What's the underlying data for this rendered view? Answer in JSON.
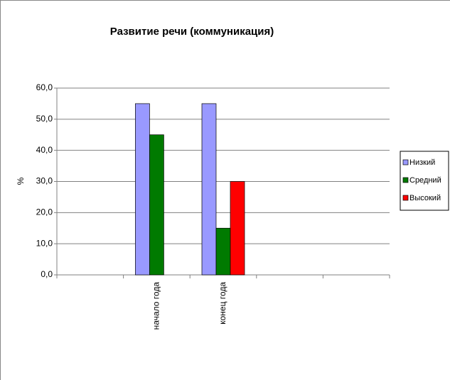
{
  "chart_data": {
    "type": "bar",
    "title": "Развитие речи (коммуникация)",
    "y_label": "%",
    "categories": [
      null,
      "начало года",
      "конец года",
      null,
      null
    ],
    "series": [
      {
        "name": "Низкий",
        "color": "#9999ff",
        "values": [
          null,
          55,
          55,
          null,
          null
        ]
      },
      {
        "name": "Средний",
        "color": "#007a00",
        "values": [
          null,
          45,
          15,
          null,
          null
        ]
      },
      {
        "name": "Высокий",
        "color": "#ff0000",
        "values": [
          null,
          null,
          30,
          null,
          null
        ]
      }
    ],
    "ylim": [
      0,
      60
    ],
    "yticks": [
      {
        "value": 0,
        "label": "0,0"
      },
      {
        "value": 10,
        "label": "10,0"
      },
      {
        "value": 20,
        "label": "20,0"
      },
      {
        "value": 30,
        "label": "30,0"
      },
      {
        "value": 40,
        "label": "40,0"
      },
      {
        "value": 50,
        "label": "50,0"
      },
      {
        "value": 60,
        "label": "60,0"
      }
    ],
    "grid": true,
    "legend": "right"
  }
}
